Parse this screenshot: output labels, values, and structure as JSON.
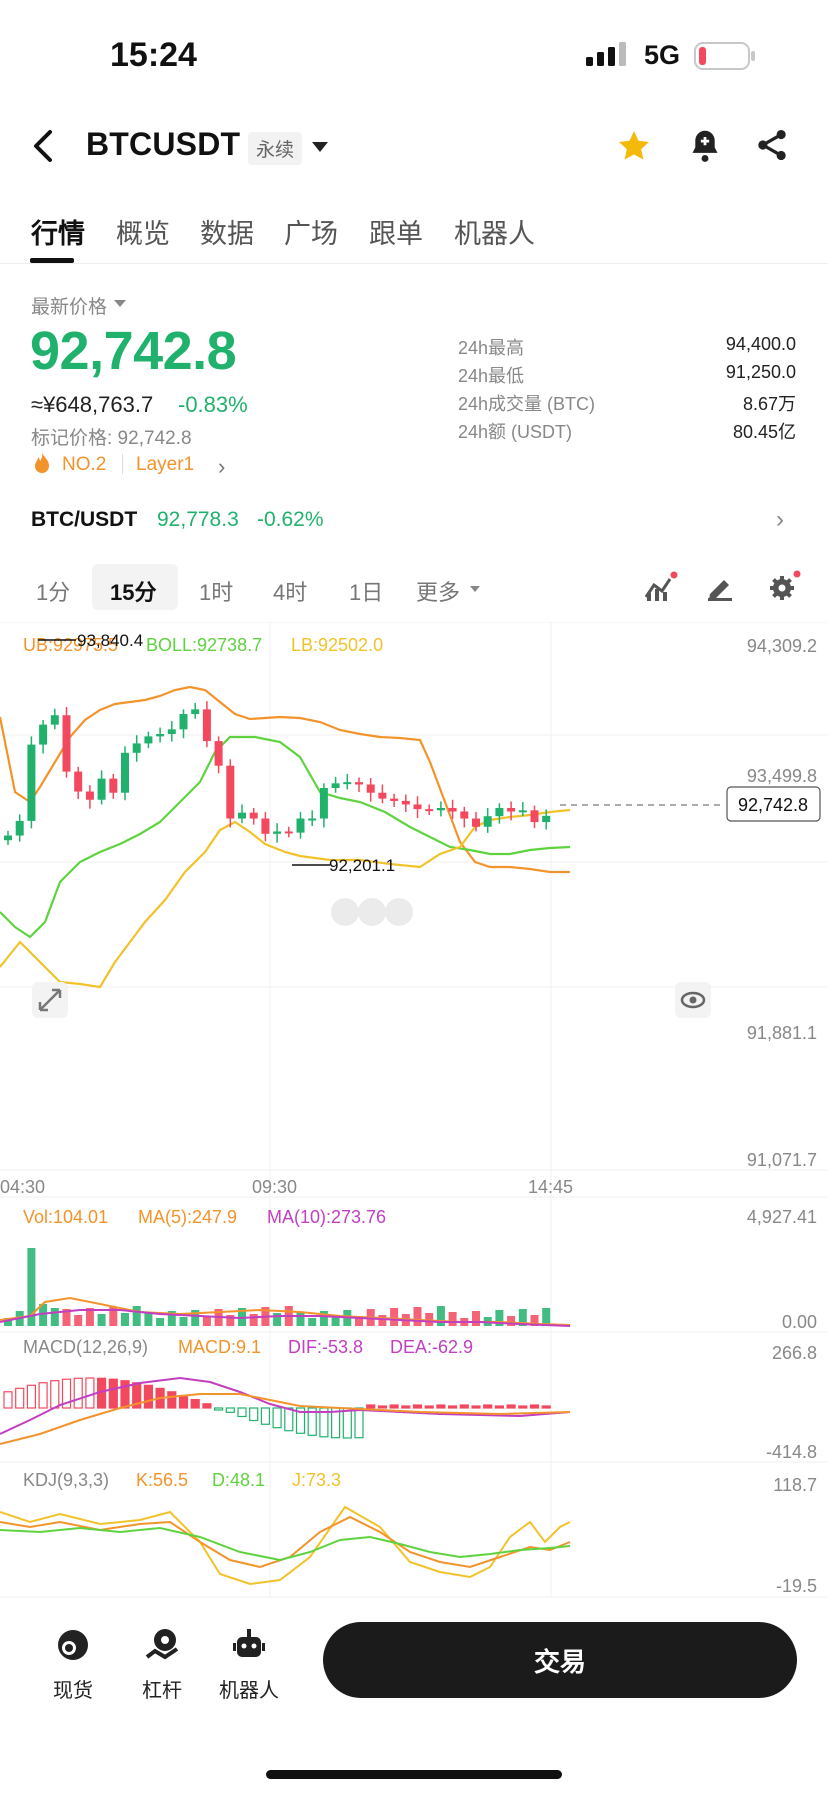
{
  "status_bar": {
    "time": "15:24",
    "network": "5G"
  },
  "header": {
    "symbol": "BTCUSDT",
    "contract_type": "永续"
  },
  "tabs": [
    {
      "label": "行情",
      "active": true
    },
    {
      "label": "概览"
    },
    {
      "label": "数据"
    },
    {
      "label": "广场"
    },
    {
      "label": "跟单"
    },
    {
      "label": "机器人"
    }
  ],
  "price": {
    "latest_label": "最新价格",
    "last": "92,742.8",
    "cny": "≈¥648,763.7",
    "change": "-0.83%",
    "mark": "标记价格: 92,742.8",
    "rank": "NO.2",
    "tag": "Layer1"
  },
  "stats": [
    {
      "label": "24h最高",
      "value": "94,400.0"
    },
    {
      "label": "24h最低",
      "value": "91,250.0"
    },
    {
      "label": "24h成交量 (BTC)",
      "value": "8.67万"
    },
    {
      "label": "24h额 (USDT)",
      "value": "80.45亿"
    }
  ],
  "spot_pair": {
    "name": "BTC/USDT",
    "price": "92,778.3",
    "change": "-0.62%"
  },
  "intervals": {
    "i1m": "1分",
    "i15m": "15分",
    "i1h": "1时",
    "i4h": "4时",
    "i1d": "1日",
    "more": "更多"
  },
  "colors": {
    "up": "#20b26c",
    "down": "#f2495e",
    "ub": "#f3932b",
    "mid": "#5fd33f",
    "lb": "#f2c22b",
    "ma10": "#c23fc2"
  },
  "chart_data": {
    "type": "candlestick",
    "interval": "15分",
    "boll": {
      "ub_label": "UB:92975.5",
      "boll_label": "BOLL:92738.7",
      "lb_label": "LB:92502.0"
    },
    "price_axis": [
      "94,309.2",
      "93,499.8",
      "92,742.8",
      "91,881.1",
      "91,071.7"
    ],
    "time_axis": [
      "04:30",
      "09:30",
      "14:45"
    ],
    "annotations": {
      "high": "93,840.4",
      "low": "92,201.1"
    },
    "candles_close": [
      92575,
      92700,
      93350,
      93520,
      93600,
      93120,
      92950,
      92880,
      93060,
      92940,
      93280,
      93360,
      93420,
      93440,
      93480,
      93610,
      93650,
      93380,
      93170,
      92720,
      92770,
      92720,
      92590,
      92610,
      92600,
      92720,
      92720,
      92980,
      93020,
      93030,
      93010,
      92940,
      92890,
      92870,
      92840,
      92800,
      92790,
      92810,
      92780,
      92720,
      92650,
      92740,
      92810,
      92780,
      92790,
      92690,
      92742.8
    ],
    "volume": {
      "vol_label": "Vol:104.01",
      "ma5_label": "MA(5):247.9",
      "ma10_label": "MA(10):273.76",
      "axis": [
        "4,927.41",
        "0.00"
      ]
    },
    "macd": {
      "title": "MACD(12,26,9)",
      "macd_label": "MACD:9.1",
      "dif_label": "DIF:-53.8",
      "dea_label": "DEA:-62.9",
      "axis": [
        "266.8",
        "-414.8"
      ]
    },
    "kdj": {
      "title": "KDJ(9,3,3)",
      "k_label": "K:56.5",
      "d_label": "D:48.1",
      "j_label": "J:73.3",
      "axis": [
        "118.7",
        "-19.5"
      ]
    }
  },
  "bottom_nav": [
    {
      "label": "现货"
    },
    {
      "label": "杠杆"
    },
    {
      "label": "机器人"
    }
  ],
  "trade_label": "交易"
}
